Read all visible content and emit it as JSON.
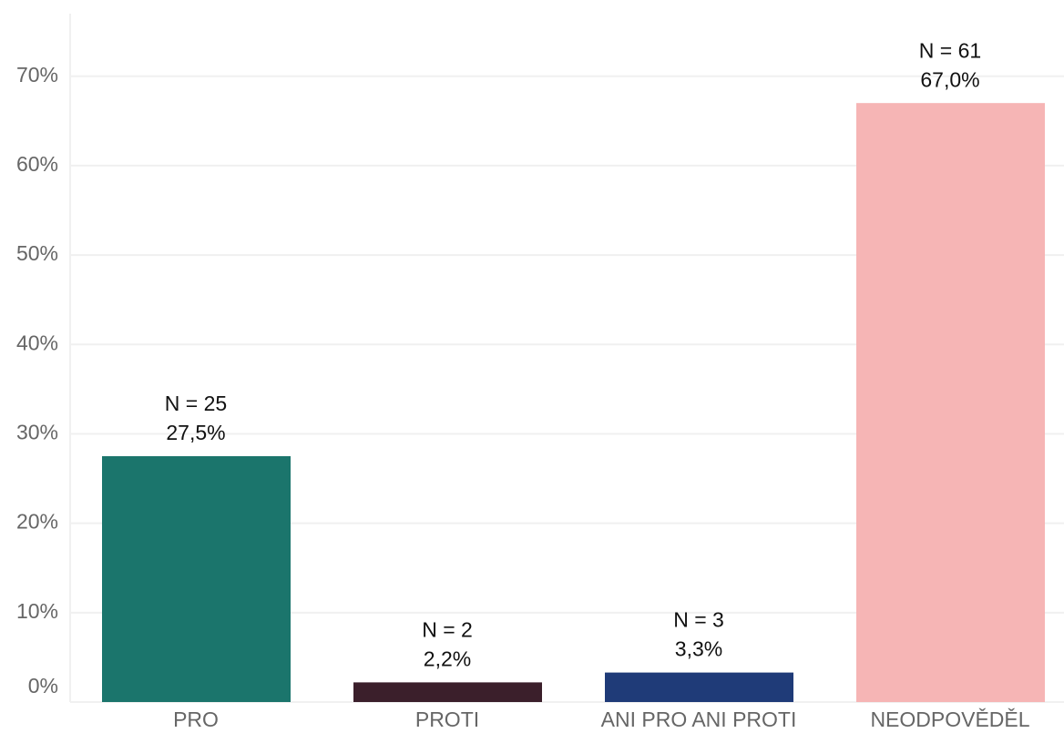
{
  "chart_data": {
    "type": "bar",
    "categories": [
      "PRO",
      "PROTI",
      "ANI PRO ANI PROTI",
      "NEODPOVĚDĚL"
    ],
    "values": [
      27.5,
      2.2,
      3.3,
      67.0
    ],
    "value_labels": [
      "27,5%",
      "2,2%",
      "3,3%",
      "67,0%"
    ],
    "count_labels": [
      "N = 25",
      "N = 2",
      "N = 3",
      "N = 61"
    ],
    "colors": [
      "#1b756c",
      "#3b1f2b",
      "#1f3b78",
      "#f6b5b5"
    ],
    "ylim": [
      0,
      77
    ],
    "yticks": [
      {
        "value": 0,
        "label": "0%"
      },
      {
        "value": 10,
        "label": "10%"
      },
      {
        "value": 20,
        "label": "20%"
      },
      {
        "value": 30,
        "label": "30%"
      },
      {
        "value": 40,
        "label": "40%"
      },
      {
        "value": 50,
        "label": "50%"
      },
      {
        "value": 60,
        "label": "60%"
      },
      {
        "value": 70,
        "label": "70%"
      }
    ],
    "grid": true
  }
}
